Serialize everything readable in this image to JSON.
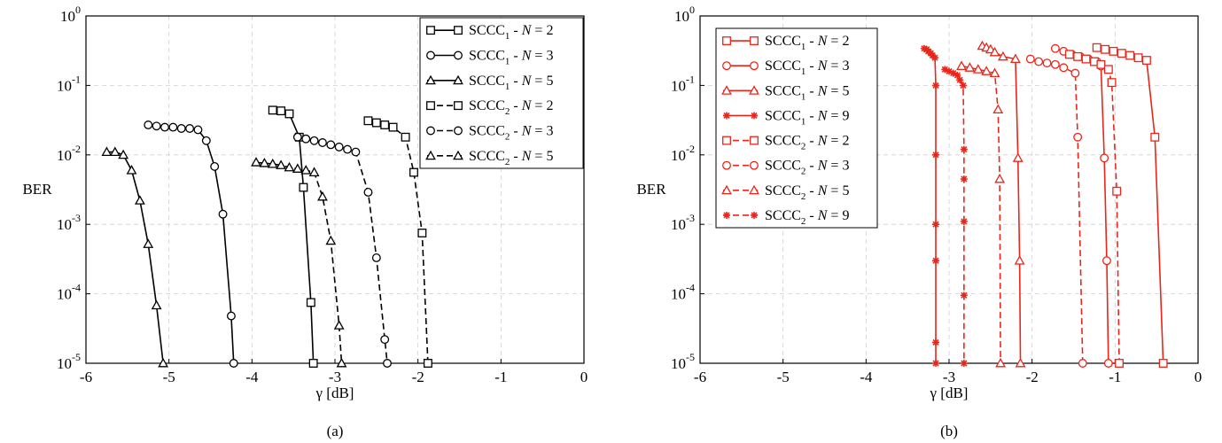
{
  "chart_data": [
    {
      "type": "line",
      "panel_label": "(a)",
      "xlabel": "γ [dB]",
      "ylabel": "BER",
      "xlim": [
        -6,
        0
      ],
      "ylim": [
        1e-05,
        1
      ],
      "yscale": "log",
      "grid": true,
      "legend_position": "top-right",
      "color": "#000000",
      "x_ticks": [
        "-6",
        "-5",
        "-4",
        "-3",
        "-2",
        "-1",
        "0"
      ],
      "series": [
        {
          "name": "SCCC1 - N = 2",
          "legend_base": "SCCC",
          "legend_sub": "1",
          "legend_tail": " - N = 2",
          "marker": "square",
          "dash": "solid",
          "points": [
            [
              -3.75,
              0.044
            ],
            [
              -3.65,
              0.043
            ],
            [
              -3.55,
              0.039
            ],
            [
              -3.43,
              0.018
            ],
            [
              -3.38,
              0.0034
            ],
            [
              -3.29,
              7.5e-05
            ],
            [
              -3.26,
              1e-05
            ]
          ]
        },
        {
          "name": "SCCC1 - N = 3",
          "legend_base": "SCCC",
          "legend_sub": "1",
          "legend_tail": " - N = 3",
          "marker": "circle",
          "dash": "solid",
          "points": [
            [
              -5.25,
              0.027
            ],
            [
              -5.15,
              0.026
            ],
            [
              -5.05,
              0.025
            ],
            [
              -4.95,
              0.025
            ],
            [
              -4.85,
              0.024
            ],
            [
              -4.75,
              0.024
            ],
            [
              -4.65,
              0.023
            ],
            [
              -4.55,
              0.016
            ],
            [
              -4.45,
              0.0068
            ],
            [
              -4.35,
              0.0014
            ],
            [
              -4.25,
              4.8e-05
            ],
            [
              -4.22,
              1e-05
            ]
          ]
        },
        {
          "name": "SCCC1 - N = 5",
          "legend_base": "SCCC",
          "legend_sub": "1",
          "legend_tail": " - N = 5",
          "marker": "triangle",
          "dash": "solid",
          "points": [
            [
              -5.75,
              0.011
            ],
            [
              -5.65,
              0.011
            ],
            [
              -5.55,
              0.01
            ],
            [
              -5.45,
              0.006
            ],
            [
              -5.35,
              0.0022
            ],
            [
              -5.25,
              0.00052
            ],
            [
              -5.15,
              6.8e-05
            ],
            [
              -5.07,
              1e-05
            ]
          ]
        },
        {
          "name": "SCCC2 - N = 2",
          "legend_base": "SCCC",
          "legend_sub": "2",
          "legend_tail": " - N = 2",
          "marker": "square",
          "dash": "dashed",
          "points": [
            [
              -2.6,
              0.031
            ],
            [
              -2.5,
              0.029
            ],
            [
              -2.4,
              0.027
            ],
            [
              -2.3,
              0.025
            ],
            [
              -2.15,
              0.018
            ],
            [
              -2.05,
              0.0056
            ],
            [
              -1.95,
              0.00075
            ],
            [
              -1.88,
              1e-05
            ]
          ]
        },
        {
          "name": "SCCC2 - N = 3",
          "legend_base": "SCCC",
          "legend_sub": "2",
          "legend_tail": " - N = 3",
          "marker": "circle",
          "dash": "dashed",
          "points": [
            [
              -3.45,
              0.018
            ],
            [
              -3.35,
              0.017
            ],
            [
              -3.25,
              0.016
            ],
            [
              -3.15,
              0.015
            ],
            [
              -3.05,
              0.014
            ],
            [
              -2.95,
              0.013
            ],
            [
              -2.85,
              0.012
            ],
            [
              -2.75,
              0.011
            ],
            [
              -2.6,
              0.0029
            ],
            [
              -2.5,
              0.00033
            ],
            [
              -2.4,
              2.2e-05
            ],
            [
              -2.37,
              1e-05
            ]
          ]
        },
        {
          "name": "SCCC2 - N = 5",
          "legend_base": "SCCC",
          "legend_sub": "2",
          "legend_tail": " - N = 5",
          "marker": "triangle",
          "dash": "dashed",
          "points": [
            [
              -3.95,
              0.0078
            ],
            [
              -3.85,
              0.0076
            ],
            [
              -3.75,
              0.0074
            ],
            [
              -3.65,
              0.0071
            ],
            [
              -3.55,
              0.0066
            ],
            [
              -3.45,
              0.0063
            ],
            [
              -3.35,
              0.006
            ],
            [
              -3.25,
              0.0056
            ],
            [
              -3.15,
              0.0025
            ],
            [
              -3.05,
              0.00058
            ],
            [
              -2.95,
              3.5e-05
            ],
            [
              -2.92,
              1e-05
            ]
          ]
        }
      ]
    },
    {
      "type": "line",
      "panel_label": "(b)",
      "xlabel": "γ [dB]",
      "ylabel": "BER",
      "xlim": [
        -6,
        0
      ],
      "ylim": [
        1e-05,
        1
      ],
      "yscale": "log",
      "grid": true,
      "legend_position": "top-left",
      "color": "#e8261b",
      "x_ticks": [
        "-6",
        "-5",
        "-4",
        "-3",
        "-2",
        "-1",
        "0"
      ],
      "series": [
        {
          "name": "SCCC1 - N = 2",
          "legend_base": "SCCC",
          "legend_sub": "1",
          "legend_tail": " - N = 2",
          "marker": "square",
          "dash": "solid",
          "points": [
            [
              -1.22,
              0.35
            ],
            [
              -1.12,
              0.33
            ],
            [
              -1.02,
              0.31
            ],
            [
              -0.92,
              0.29
            ],
            [
              -0.82,
              0.27
            ],
            [
              -0.72,
              0.25
            ],
            [
              -0.62,
              0.23
            ],
            [
              -0.52,
              0.018
            ],
            [
              -0.42,
              1e-05
            ]
          ]
        },
        {
          "name": "SCCC1 - N = 3",
          "legend_base": "SCCC",
          "legend_sub": "1",
          "legend_tail": " - N = 3",
          "marker": "circle",
          "dash": "solid",
          "points": [
            [
              -1.72,
              0.34
            ],
            [
              -1.62,
              0.31
            ],
            [
              -1.52,
              0.28
            ],
            [
              -1.42,
              0.26
            ],
            [
              -1.32,
              0.24
            ],
            [
              -1.22,
              0.22
            ],
            [
              -1.17,
              0.19
            ],
            [
              -1.13,
              0.009
            ],
            [
              -1.1,
              0.0003
            ],
            [
              -1.08,
              1e-05
            ]
          ]
        },
        {
          "name": "SCCC1 - N = 5",
          "legend_base": "SCCC",
          "legend_sub": "1",
          "legend_tail": " - N = 5",
          "marker": "triangle",
          "dash": "solid",
          "points": [
            [
              -2.6,
              0.37
            ],
            [
              -2.55,
              0.35
            ],
            [
              -2.5,
              0.33
            ],
            [
              -2.45,
              0.3
            ],
            [
              -2.35,
              0.26
            ],
            [
              -2.2,
              0.24
            ],
            [
              -2.17,
              0.009
            ],
            [
              -2.15,
              0.0003
            ],
            [
              -2.14,
              1e-05
            ]
          ]
        },
        {
          "name": "SCCC1 - N = 9",
          "legend_base": "SCCC",
          "legend_sub": "1",
          "legend_tail": " - N = 9",
          "marker": "star",
          "dash": "solid",
          "points": [
            [
              -3.3,
              0.34
            ],
            [
              -3.27,
              0.33
            ],
            [
              -3.25,
              0.31
            ],
            [
              -3.22,
              0.29
            ],
            [
              -3.2,
              0.27
            ],
            [
              -3.17,
              0.25
            ],
            [
              -3.16,
              0.1
            ],
            [
              -3.16,
              0.01
            ],
            [
              -3.16,
              0.001
            ],
            [
              -3.16,
              0.0003
            ],
            [
              -3.16,
              2e-05
            ],
            [
              -3.16,
              1e-05
            ]
          ]
        },
        {
          "name": "SCCC2 - N = 2",
          "legend_base": "SCCC",
          "legend_sub": "2",
          "legend_tail": " - N = 2",
          "marker": "square",
          "dash": "dashed",
          "points": [
            [
              -1.55,
              0.28
            ],
            [
              -1.45,
              0.26
            ],
            [
              -1.35,
              0.24
            ],
            [
              -1.25,
              0.22
            ],
            [
              -1.17,
              0.2
            ],
            [
              -1.08,
              0.17
            ],
            [
              -1.04,
              0.11
            ],
            [
              -0.98,
              0.003
            ],
            [
              -0.95,
              1e-05
            ]
          ]
        },
        {
          "name": "SCCC2 - N = 3",
          "legend_base": "SCCC",
          "legend_sub": "2",
          "legend_tail": " - N = 3",
          "marker": "circle",
          "dash": "dashed",
          "points": [
            [
              -2.02,
              0.24
            ],
            [
              -1.92,
              0.22
            ],
            [
              -1.82,
              0.21
            ],
            [
              -1.72,
              0.2
            ],
            [
              -1.62,
              0.18
            ],
            [
              -1.48,
              0.15
            ],
            [
              -1.45,
              0.018
            ],
            [
              -1.39,
              1e-05
            ]
          ]
        },
        {
          "name": "SCCC2 - N = 5",
          "legend_base": "SCCC",
          "legend_sub": "2",
          "legend_tail": " - N = 5",
          "marker": "triangle",
          "dash": "dashed",
          "points": [
            [
              -2.85,
              0.19
            ],
            [
              -2.75,
              0.18
            ],
            [
              -2.65,
              0.17
            ],
            [
              -2.55,
              0.16
            ],
            [
              -2.45,
              0.15
            ],
            [
              -2.41,
              0.045
            ],
            [
              -2.39,
              0.0045
            ],
            [
              -2.38,
              1e-05
            ]
          ]
        },
        {
          "name": "SCCC2 - N = 9",
          "legend_base": "SCCC",
          "legend_sub": "2",
          "legend_tail": " - N = 9",
          "marker": "star",
          "dash": "dashed",
          "points": [
            [
              -3.05,
              0.17
            ],
            [
              -3.0,
              0.16
            ],
            [
              -2.95,
              0.15
            ],
            [
              -2.9,
              0.14
            ],
            [
              -2.87,
              0.12
            ],
            [
              -2.83,
              0.1
            ],
            [
              -2.82,
              0.012
            ],
            [
              -2.82,
              0.0045
            ],
            [
              -2.82,
              0.0011
            ],
            [
              -2.82,
              9.5e-05
            ],
            [
              -2.82,
              1e-05
            ]
          ]
        }
      ]
    }
  ]
}
